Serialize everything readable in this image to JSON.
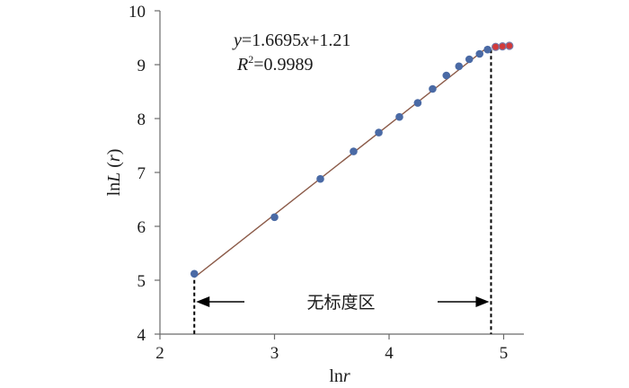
{
  "chart_data": {
    "type": "scatter",
    "xlabel_parts": [
      "ln",
      "r"
    ],
    "ylabel_parts": [
      "ln",
      "L",
      " (",
      "r",
      ")"
    ],
    "xlim": [
      2,
      5.2
    ],
    "ylim": [
      4,
      10
    ],
    "x_ticks": [
      "2",
      "3",
      "4",
      "5"
    ],
    "y_ticks": [
      "4",
      "5",
      "6",
      "7",
      "8",
      "9",
      "10"
    ],
    "grid": false,
    "series": [
      {
        "color": "#4a6aa5",
        "x": [
          2.3,
          3.0,
          3.4,
          3.69,
          3.91,
          4.09,
          4.25,
          4.38,
          4.5,
          4.61,
          4.7,
          4.79,
          4.86
        ],
        "y": [
          5.12,
          6.17,
          6.88,
          7.39,
          7.74,
          8.03,
          8.29,
          8.55,
          8.8,
          8.97,
          9.1,
          9.2,
          9.28
        ]
      },
      {
        "color": "#d23a3a",
        "x": [
          4.93,
          4.99,
          5.05
        ],
        "y": [
          9.33,
          9.34,
          9.35
        ]
      }
    ],
    "fit_line": {
      "slope": 1.6695,
      "intercept": 1.21,
      "x_range": [
        2.3,
        4.86
      ],
      "color": "#8b5a48"
    },
    "equation": {
      "y_var": "y",
      "eq_text": "=1.6695",
      "x_var": "x",
      "tail": "+1.21"
    },
    "r_squared": {
      "label": "R",
      "sup": "2",
      "value": "=0.9989"
    },
    "scale_free_region": {
      "label": "无标度区",
      "x_start": 2.3,
      "x_end": 4.89
    }
  }
}
